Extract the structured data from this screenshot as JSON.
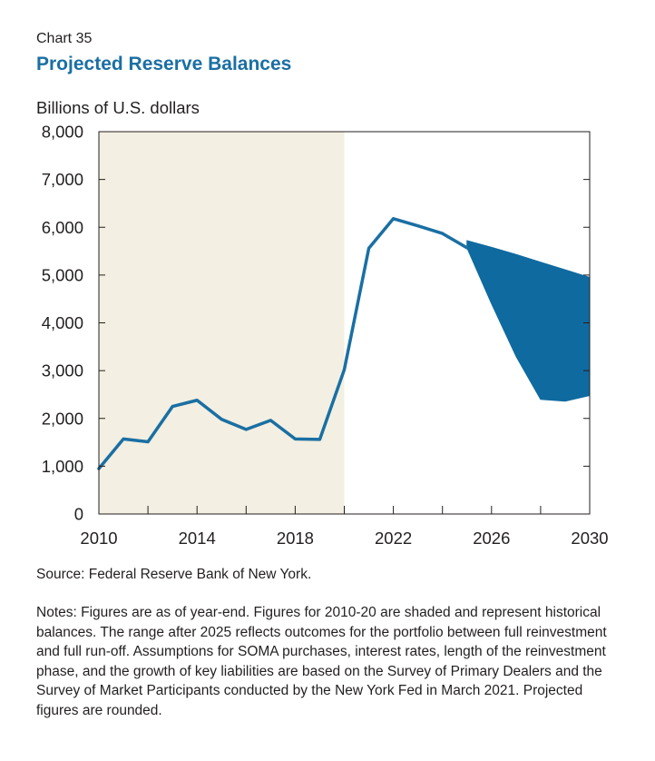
{
  "header": {
    "chart_number": "Chart 35",
    "title": "Projected Reserve Balances",
    "unit_label": "Billions of U.S. dollars"
  },
  "chart_data": {
    "type": "line",
    "title": "Projected Reserve Balances",
    "ylabel": "Billions of U.S. dollars",
    "xlabel": "",
    "xlim": [
      2010,
      2030
    ],
    "ylim": [
      0,
      8000
    ],
    "x_ticks": [
      2010,
      2014,
      2018,
      2022,
      2026,
      2030
    ],
    "x_tick_labels": [
      "2010",
      "2014",
      "2018",
      "2022",
      "2026",
      "2030"
    ],
    "y_ticks": [
      0,
      1000,
      2000,
      3000,
      4000,
      5000,
      6000,
      7000,
      8000
    ],
    "y_tick_labels": [
      "0",
      "1,000",
      "2,000",
      "3,000",
      "4,000",
      "5,000",
      "6,000",
      "7,000",
      "8,000"
    ],
    "historical_shading": {
      "from": 2010,
      "to": 2020,
      "color": "#f3efe2"
    },
    "series": [
      {
        "color": "#1a6fa3",
        "x": [
          2010,
          2011,
          2012,
          2013,
          2014,
          2015,
          2016,
          2017,
          2018,
          2019,
          2020,
          2021,
          2022,
          2023,
          2024,
          2025
        ],
        "values": [
          950,
          1570,
          1510,
          2250,
          2380,
          1980,
          1770,
          1960,
          1570,
          1560,
          3020,
          5560,
          6180,
          6030,
          5870,
          5570
        ]
      }
    ],
    "range": {
      "color": "#0f6aa0",
      "x": [
        2025,
        2026,
        2027,
        2028,
        2029,
        2030
      ],
      "upper": [
        5720,
        5580,
        5430,
        5270,
        5110,
        4950
      ],
      "lower": [
        5570,
        4400,
        3300,
        2400,
        2360,
        2480
      ]
    },
    "grid": false
  },
  "footer": {
    "source": "Source: Federal Reserve Bank of New York.",
    "notes": "Notes: Figures are as of year-end. Figures for 2010-20 are shaded and represent historical balances. The range after 2025 reflects outcomes for the portfolio between full reinvestment and full run-off. Assumptions for SOMA purchases, interest rates, length of the reinvestment phase, and the growth of key liabilities are based on the Survey of Primary Dealers and the Survey of Market Participants conducted by the New York Fed in March 2021. Projected figures are rounded."
  }
}
